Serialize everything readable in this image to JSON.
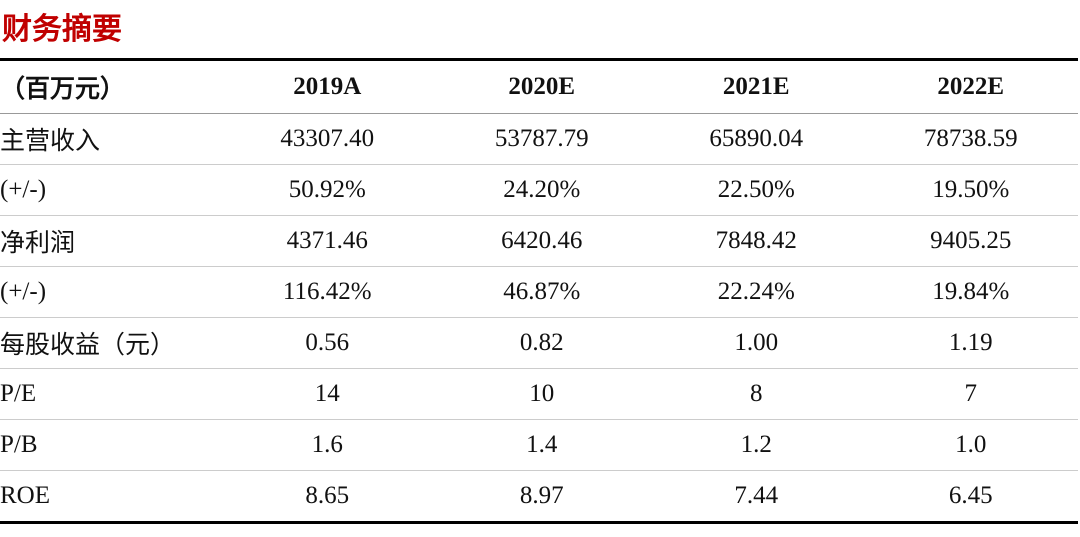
{
  "title": "财务摘要",
  "table": {
    "header": [
      "（百万元）",
      "2019A",
      "2020E",
      "2021E",
      "2022E"
    ],
    "rows": [
      [
        "主营收入",
        "43307.40",
        "53787.79",
        "65890.04",
        "78738.59"
      ],
      [
        "(+/-)",
        "50.92%",
        "24.20%",
        "22.50%",
        "19.50%"
      ],
      [
        "净利润",
        "4371.46",
        "6420.46",
        "7848.42",
        "9405.25"
      ],
      [
        "(+/-)",
        "116.42%",
        "46.87%",
        "22.24%",
        "19.84%"
      ],
      [
        "每股收益（元）",
        "0.56",
        "0.82",
        "1.00",
        "1.19"
      ],
      [
        "P/E",
        "14",
        "10",
        "8",
        "7"
      ],
      [
        "P/B",
        "1.6",
        "1.4",
        "1.2",
        "1.0"
      ],
      [
        "ROE",
        "8.65",
        "8.97",
        "7.44",
        "6.45"
      ]
    ]
  }
}
